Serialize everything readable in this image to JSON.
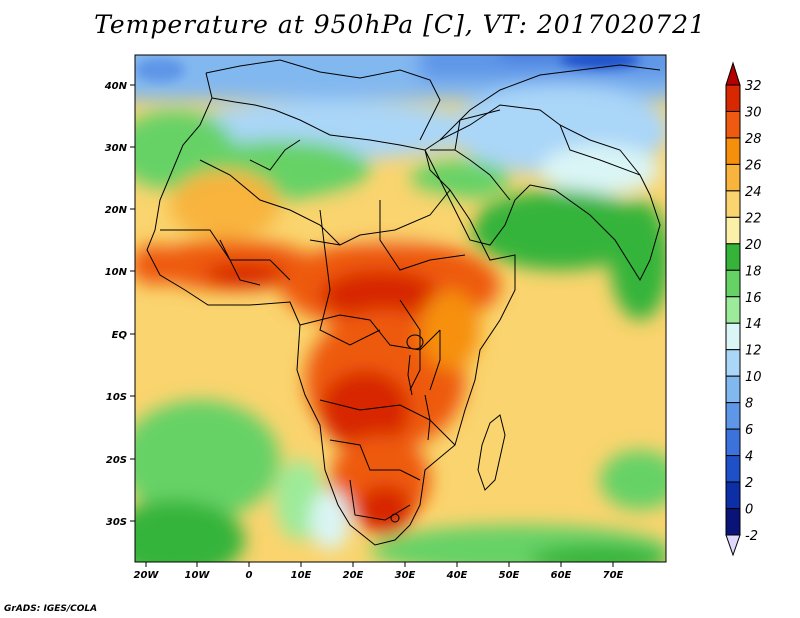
{
  "title": "Temperature at 950hPa [C], VT: 2017020721",
  "credit": "GrADS: IGES/COLA",
  "map": {
    "lat_ticks": [
      "40N",
      "30N",
      "20N",
      "10N",
      "EQ",
      "10S",
      "20S",
      "30S"
    ],
    "lon_ticks": [
      "20W",
      "10W",
      "0",
      "10E",
      "20E",
      "30E",
      "40E",
      "50E",
      "60E",
      "70E"
    ],
    "lon_range": [
      -22,
      80
    ],
    "lat_range": [
      -37,
      45
    ]
  },
  "colorbar": {
    "levels": [
      "32",
      "30",
      "28",
      "26",
      "24",
      "22",
      "20",
      "18",
      "16",
      "14",
      "12",
      "10",
      "8",
      "6",
      "4",
      "2",
      "0",
      "-2"
    ],
    "colors": [
      "#b40000",
      "#d72800",
      "#ee5a10",
      "#f6900c",
      "#f8b43c",
      "#fad46e",
      "#fcf0a8",
      "#36b43a",
      "#66d266",
      "#9ceb9a",
      "#daf5f5",
      "#aad6f8",
      "#82b8f0",
      "#5e96e8",
      "#3c72dc",
      "#1e50c8",
      "#0c2ea6",
      "#0a1478",
      "#e0d8ff"
    ]
  }
}
